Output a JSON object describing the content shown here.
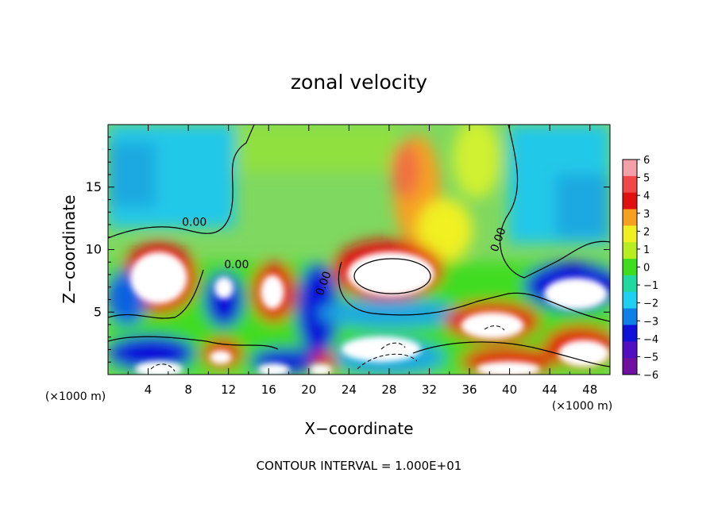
{
  "chart_data": {
    "type": "heatmap",
    "title": "zonal velocity",
    "xlabel": "X−coordinate",
    "ylabel": "Z−coordinate",
    "x_unit": "(×1000 m)",
    "y_unit": "(×1000 m)",
    "xlim": [
      0,
      50
    ],
    "ylim": [
      0,
      20
    ],
    "x_ticks": [
      "4",
      "8",
      "12",
      "16",
      "20",
      "24",
      "28",
      "32",
      "36",
      "40",
      "44",
      "48"
    ],
    "x_tick_values": [
      4,
      8,
      12,
      16,
      20,
      24,
      28,
      32,
      36,
      40,
      44,
      48
    ],
    "y_ticks": [
      "5",
      "10",
      "15"
    ],
    "y_tick_values": [
      5,
      10,
      15
    ],
    "colorbar": {
      "values": [
        6,
        5,
        4,
        3,
        2,
        1,
        0,
        -1,
        -2,
        -3,
        -4,
        -5,
        -6
      ],
      "labels": [
        "6",
        "5",
        "4",
        "3",
        "2",
        "1",
        "0",
        "−1",
        "−2",
        "−3",
        "−4",
        "−5",
        "−6"
      ],
      "colors": [
        "#f4a0a8",
        "#f04848",
        "#e01010",
        "#f5a020",
        "#f0f020",
        "#b8ee20",
        "#40dc20",
        "#20d8a0",
        "#20d0f0",
        "#1080e8",
        "#1010d8",
        "#5010c0",
        "#7010a0"
      ]
    },
    "contour_labels": [
      "0.00",
      "0.00",
      "0.00",
      "0.00"
    ],
    "contour_interval_text": "CONTOUR INTERVAL = 1.000E+01",
    "grid": false,
    "legend": "colorbar-right",
    "over_range_color": "#ffffff"
  }
}
